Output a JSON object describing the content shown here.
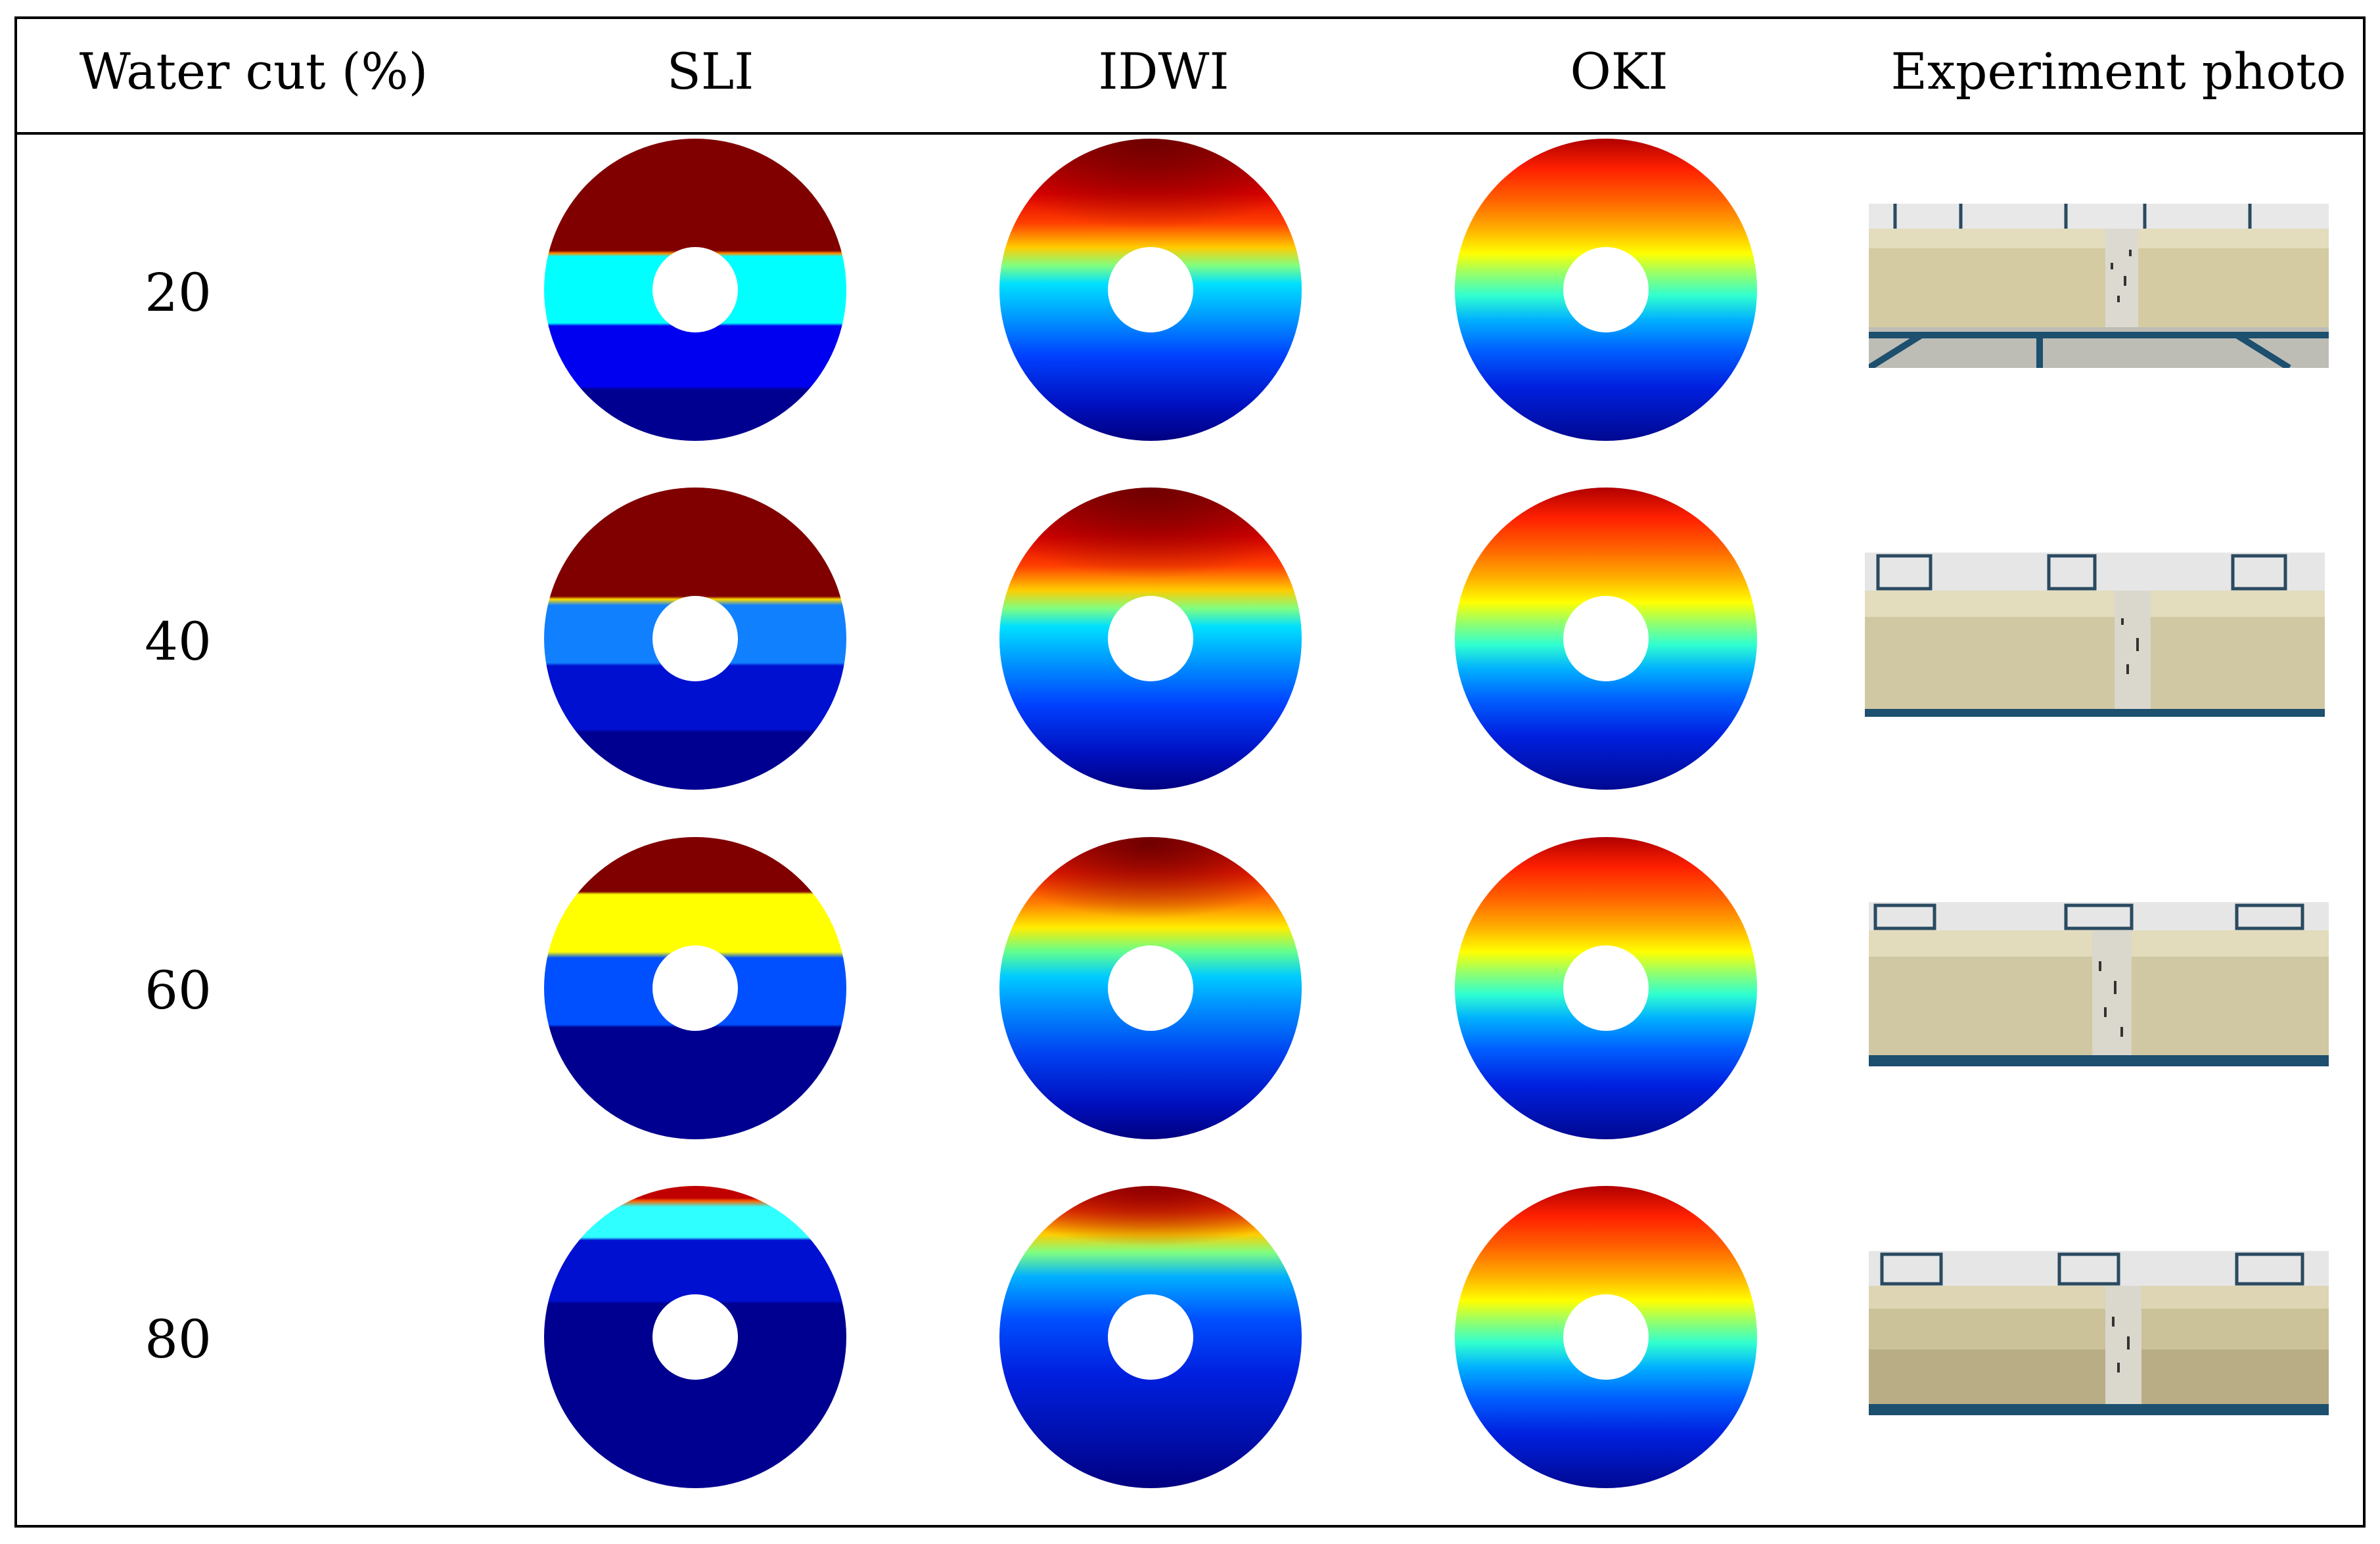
{
  "table": {
    "headers": [
      "Water cut (%)",
      "SLI",
      "IDWI",
      "OKI",
      "Experiment photo"
    ],
    "rows": [
      {
        "water_cut": "20"
      },
      {
        "water_cut": "40"
      },
      {
        "water_cut": "60"
      },
      {
        "water_cut": "80"
      }
    ]
  },
  "colors": {
    "border": "#000000",
    "pipe": "#d4cba2",
    "frame": "#1d4f6e",
    "background": "#ffffff"
  },
  "icons": {
    "sli": "stratified-layer-disc",
    "idwi": "inverse-distance-disc",
    "oki": "kriging-disc",
    "photo": "pipe-photo"
  }
}
